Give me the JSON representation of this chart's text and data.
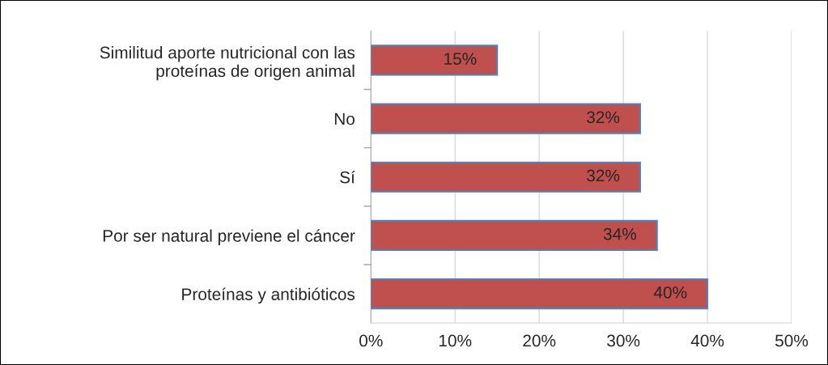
{
  "chart_data": {
    "type": "bar",
    "orientation": "horizontal",
    "categories": [
      "Similitud aporte nutricional con las\nproteínas de origen animal",
      "No",
      "Sí",
      "Por ser natural previene el cáncer",
      "Proteínas y antibióticos"
    ],
    "values": [
      15,
      32,
      32,
      34,
      40
    ],
    "value_labels": [
      "15%",
      "32%",
      "32%",
      "34%",
      "40%"
    ],
    "color": "#c0504d",
    "xlim": [
      0,
      50
    ],
    "xticks": [
      {
        "value": 0,
        "label": "0%"
      },
      {
        "value": 10,
        "label": "10%"
      },
      {
        "value": 20,
        "label": "20%"
      },
      {
        "value": 30,
        "label": "30%"
      },
      {
        "value": 40,
        "label": "40%"
      },
      {
        "value": 50,
        "label": "50%"
      }
    ],
    "grid": "x",
    "legend": false
  }
}
